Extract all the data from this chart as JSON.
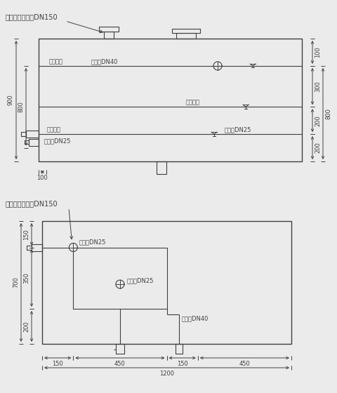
{
  "bg_color": "#ebebeb",
  "line_color": "#404040",
  "font_size": 6.0,
  "title_font_size": 7.0,
  "fig_width": 4.8,
  "fig_height": 5.6,
  "d1": {
    "title": "液位传感器管口DN150",
    "label_overflow_wl": "膨胀水位",
    "label_overflow_pipe": "溢流管DN40",
    "label_upper": "上限水位",
    "label_expand_pipe": "膨胀管DN25",
    "label_lower": "下限水位",
    "label_drain": "排污管DN25",
    "dim_900": "900",
    "dim_800": "800",
    "dim_100_left": "100",
    "dim_100_right": "100",
    "dim_300": "300",
    "dim_200a": "200",
    "dim_200b": "200",
    "dim_800r": "800"
  },
  "d2": {
    "title": "液位传感器管口DN150",
    "label_expand": "膨胀管DN25",
    "label_drain": "排污管DN25",
    "label_overflow": "溢流管DN40",
    "dim_700": "700",
    "dim_150a": "150",
    "dim_350": "350",
    "dim_200": "200",
    "dim_b150a": "150",
    "dim_b450a": "450",
    "dim_b150b": "150",
    "dim_b450b": "450",
    "dim_1200": "1200"
  }
}
